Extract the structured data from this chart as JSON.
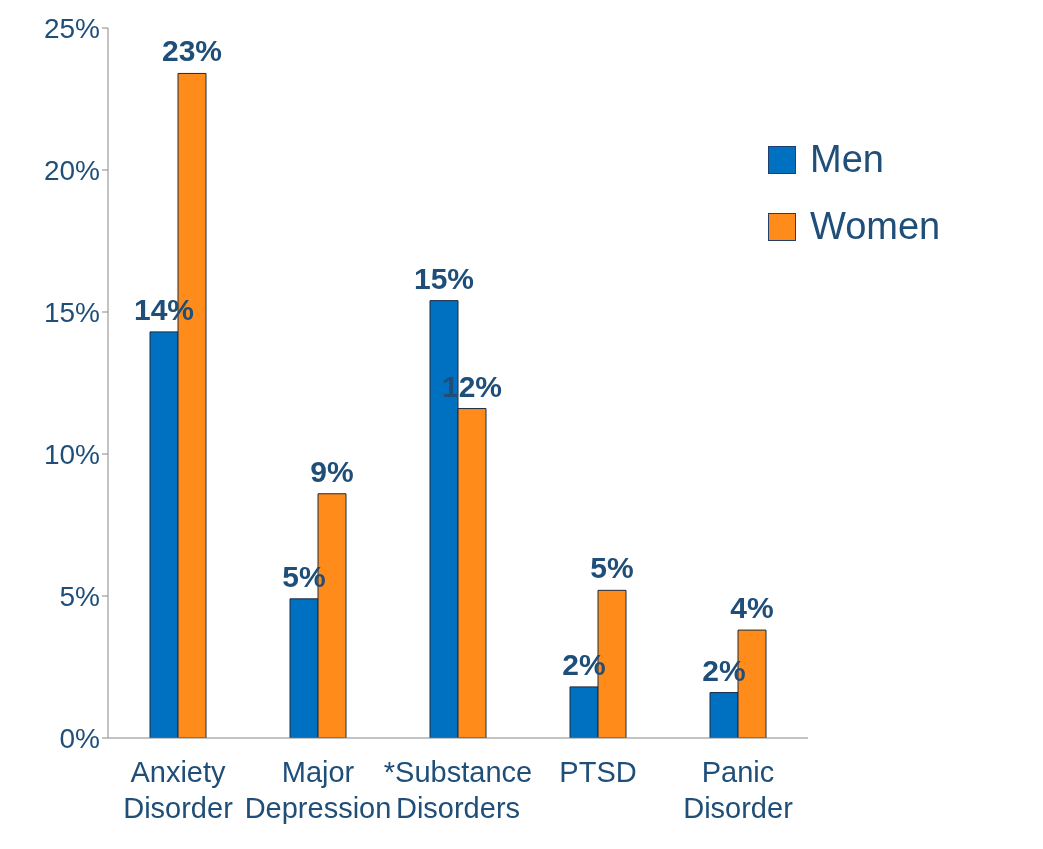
{
  "chart_data": {
    "type": "bar",
    "categories": [
      "Anxiety Disorder",
      "Major Depression",
      "*Substance Disorders",
      "PTSD",
      "Panic Disorder"
    ],
    "series": [
      {
        "name": "Men",
        "color": "#0070c0",
        "values": [
          14.3,
          4.9,
          15.4,
          1.8,
          1.6
        ],
        "value_labels": [
          "14%",
          "5%",
          "15%",
          "2%",
          "2%"
        ]
      },
      {
        "name": "Women",
        "color": "#ff8c1a",
        "values": [
          23.4,
          8.6,
          11.6,
          5.2,
          3.8
        ],
        "value_labels": [
          "23%",
          "9%",
          "12%",
          "5%",
          "4%"
        ]
      }
    ],
    "ylim": [
      0,
      25
    ],
    "yticks": [
      {
        "value": 0,
        "label": "0%"
      },
      {
        "value": 5,
        "label": "5%"
      },
      {
        "value": 10,
        "label": "10%"
      },
      {
        "value": 15,
        "label": "15%"
      },
      {
        "value": 20,
        "label": "20%"
      },
      {
        "value": 25,
        "label": "25%"
      }
    ],
    "grid": false,
    "legend": "top right"
  }
}
